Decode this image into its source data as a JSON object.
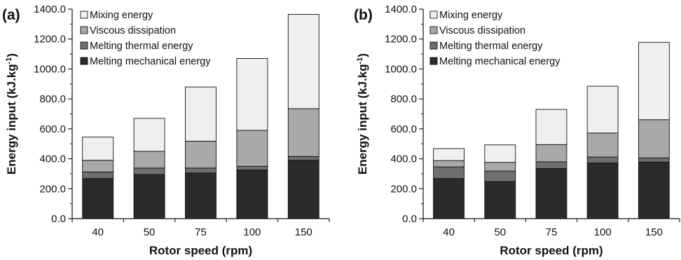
{
  "colors": {
    "melting_mechanical": "#2b2b2b",
    "melting_thermal": "#6f6f6f",
    "viscous": "#a9a9a9",
    "mixing": "#efefef",
    "axis": "#111111"
  },
  "chart_data": [
    {
      "type": "bar",
      "stacked": true,
      "panel_label": "(a)",
      "xlabel": "Rotor speed (rpm)",
      "ylabel": "Energy input (kJ.kg",
      "ylabel_sup": "-1",
      "ylabel_close": ")",
      "ylim": [
        0,
        1400
      ],
      "yticks": [
        "0.0",
        "200.0",
        "400.0",
        "600.0",
        "800.0",
        "1000.0",
        "1200.0",
        "1400.0"
      ],
      "categories": [
        "40",
        "50",
        "75",
        "100",
        "150"
      ],
      "legend_position": "top-left",
      "grid": false,
      "series": [
        {
          "name": "Melting mechanical energy",
          "color_key": "melting_mechanical",
          "values": [
            268,
            295,
            305,
            325,
            390
          ]
        },
        {
          "name": "Melting thermal energy",
          "color_key": "melting_thermal",
          "values": [
            44,
            43,
            33,
            25,
            25
          ]
        },
        {
          "name": "Viscous dissipation",
          "color_key": "viscous",
          "values": [
            78,
            112,
            180,
            240,
            320
          ]
        },
        {
          "name": "Mixing energy",
          "color_key": "mixing",
          "values": [
            155,
            220,
            362,
            480,
            630
          ]
        }
      ]
    },
    {
      "type": "bar",
      "stacked": true,
      "panel_label": "(b)",
      "xlabel": "Rotor speed (rpm)",
      "ylabel": "Energy input (kJ.kg",
      "ylabel_sup": "-1",
      "ylabel_close": ")",
      "ylim": [
        0,
        1400
      ],
      "yticks": [
        "0.0",
        "200.0",
        "400.0",
        "600.0",
        "800.0",
        "1000.0",
        "1200.0",
        "1400.0"
      ],
      "categories": [
        "40",
        "50",
        "75",
        "100",
        "150"
      ],
      "legend_position": "top-left",
      "grid": false,
      "series": [
        {
          "name": "Melting mechanical energy",
          "color_key": "melting_mechanical",
          "values": [
            268,
            248,
            335,
            372,
            378
          ]
        },
        {
          "name": "Melting thermal energy",
          "color_key": "melting_thermal",
          "values": [
            78,
            70,
            45,
            40,
            28
          ]
        },
        {
          "name": "Viscous dissipation",
          "color_key": "viscous",
          "values": [
            42,
            58,
            115,
            160,
            255
          ]
        },
        {
          "name": "Mixing energy",
          "color_key": "mixing",
          "values": [
            80,
            117,
            235,
            313,
            517
          ]
        }
      ]
    }
  ]
}
